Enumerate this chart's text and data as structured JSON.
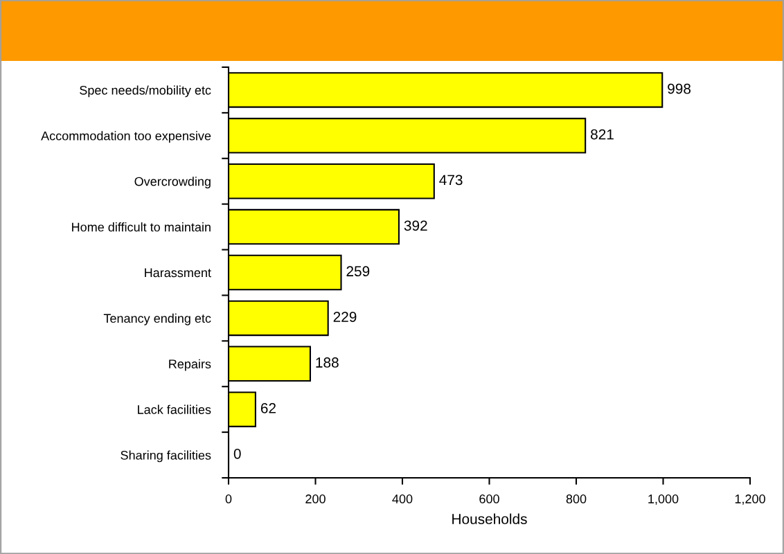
{
  "chart_data": {
    "type": "bar",
    "orientation": "horizontal",
    "xlabel": "Households",
    "categories": [
      "Spec needs/mobility etc",
      "Accommodation too expensive",
      "Overcrowding",
      "Home difficult to maintain",
      "Harassment",
      "Tenancy ending etc",
      "Repairs",
      "Lack facilities",
      "Sharing facilities"
    ],
    "values": [
      998,
      821,
      473,
      392,
      259,
      229,
      188,
      62,
      0
    ],
    "color": "#ffff00",
    "xlim": [
      0,
      1200
    ],
    "xticks": [
      0,
      200,
      400,
      600,
      800,
      {
        "value": 1000,
        "label": "1,000"
      },
      {
        "value": 1200,
        "label": "1,200"
      }
    ],
    "data_labels": true,
    "grid": false,
    "legend": false
  }
}
